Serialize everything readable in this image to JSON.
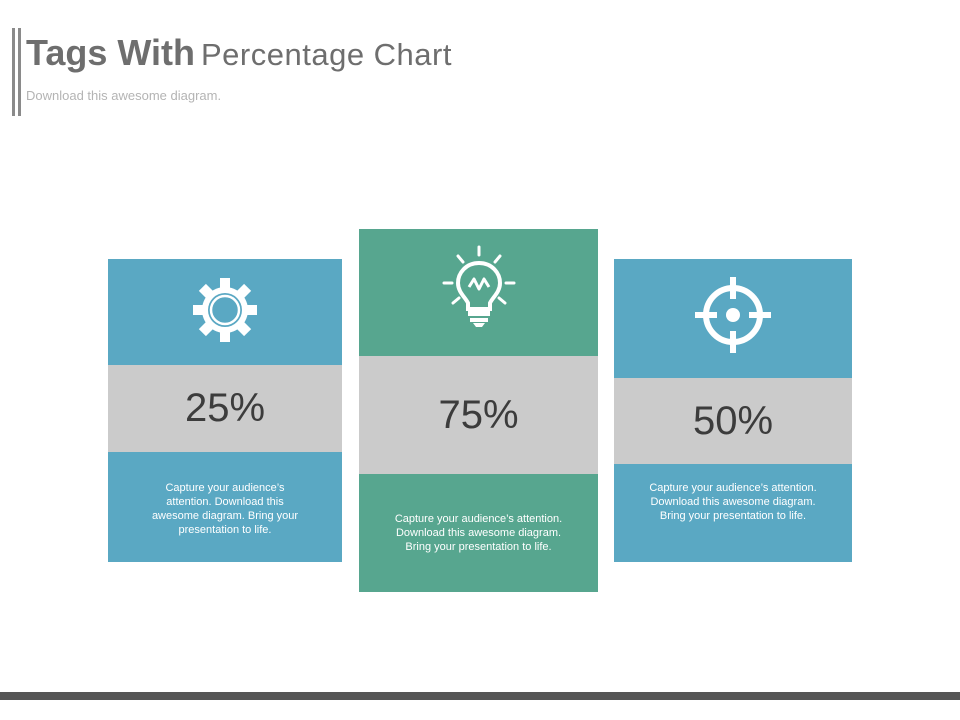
{
  "header": {
    "title_bold": "Tags With",
    "title_light": "Percentage Chart",
    "subtitle": "Download this awesome diagram."
  },
  "cards": [
    {
      "icon": "gear-icon",
      "percent": "25%",
      "description": "Capture your audience’s attention. Download this awesome diagram. Bring your presentation to life.",
      "color": "#5aa8c3"
    },
    {
      "icon": "lightbulb-icon",
      "percent": "75%",
      "description": "Capture your audience’s attention. Download this awesome diagram. Bring your presentation to life.",
      "color": "#57a68f"
    },
    {
      "icon": "crosshair-icon",
      "percent": "50%",
      "description": "Capture your audience’s attention. Download this awesome diagram. Bring your presentation to life.",
      "color": "#5aa8c3"
    }
  ],
  "colors": {
    "panel_gray": "#cbcbcb",
    "footer": "#555555"
  }
}
